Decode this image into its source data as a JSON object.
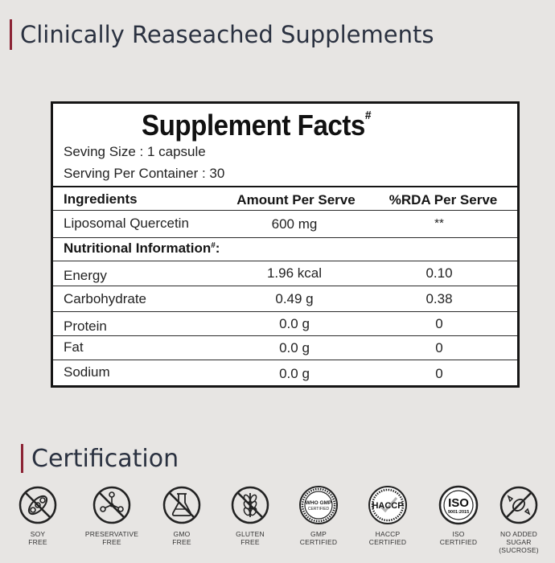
{
  "header": {
    "title": "Clinically Reaseached Supplements"
  },
  "facts": {
    "title": "Supplement Facts",
    "title_mark": "#",
    "serving_size": "Seving Size : 1 capsule",
    "serving_per_container": "Serving Per Container : 30",
    "columns": [
      "Ingredients",
      "Amount Per Serve",
      "%RDA Per Serve"
    ],
    "ingredients": [
      {
        "name": "Liposomal Quercetin",
        "amount": "600 mg",
        "rda": "**"
      }
    ],
    "nutrition_label": "Nutritional Information",
    "nutrition_mark": "#",
    "nutrition_suffix": ":",
    "nutrition": [
      {
        "name": "Energy",
        "amount": "1.96 kcal",
        "rda": "0.10"
      },
      {
        "name": "Carbohydrate",
        "amount": "0.49 g",
        "rda": "0.38"
      },
      {
        "name": "Protein",
        "amount": "0.0 g",
        "rda": "0"
      },
      {
        "name": "Fat",
        "amount": "0.0 g",
        "rda": "0"
      },
      {
        "name": "Sodium",
        "amount": "0.0 g",
        "rda": "0"
      }
    ]
  },
  "certification": {
    "title": "Certification",
    "items": [
      {
        "label": "SOY\nFREE",
        "icon": "soy-free-icon"
      },
      {
        "label": "PRESERVATIVE\nFREE",
        "icon": "preservative-free-icon"
      },
      {
        "label": "GMO\nFREE",
        "icon": "gmo-free-icon"
      },
      {
        "label": "GLUTEN\nFREE",
        "icon": "gluten-free-icon"
      },
      {
        "label": "GMP\nCERTIFIED",
        "icon": "gmp-certified-icon",
        "badge_top": "WHO GMP",
        "badge_bottom": "CERTIFIED"
      },
      {
        "label": "HACCP\nCERTIFIED",
        "icon": "haccp-certified-icon",
        "badge_text": "HACCP"
      },
      {
        "label": "ISO\nCERTIFIED",
        "icon": "iso-certified-icon",
        "badge_text": "ISO",
        "badge_sub": "9001:2015"
      },
      {
        "label": "NO ADDED\nSUGAR (SUCROSE)",
        "icon": "no-added-sugar-icon"
      }
    ]
  },
  "colors": {
    "background": "#e7e5e3",
    "accent_bar": "#8c2435",
    "heading": "#2a3140",
    "icon_stroke": "#222222"
  }
}
